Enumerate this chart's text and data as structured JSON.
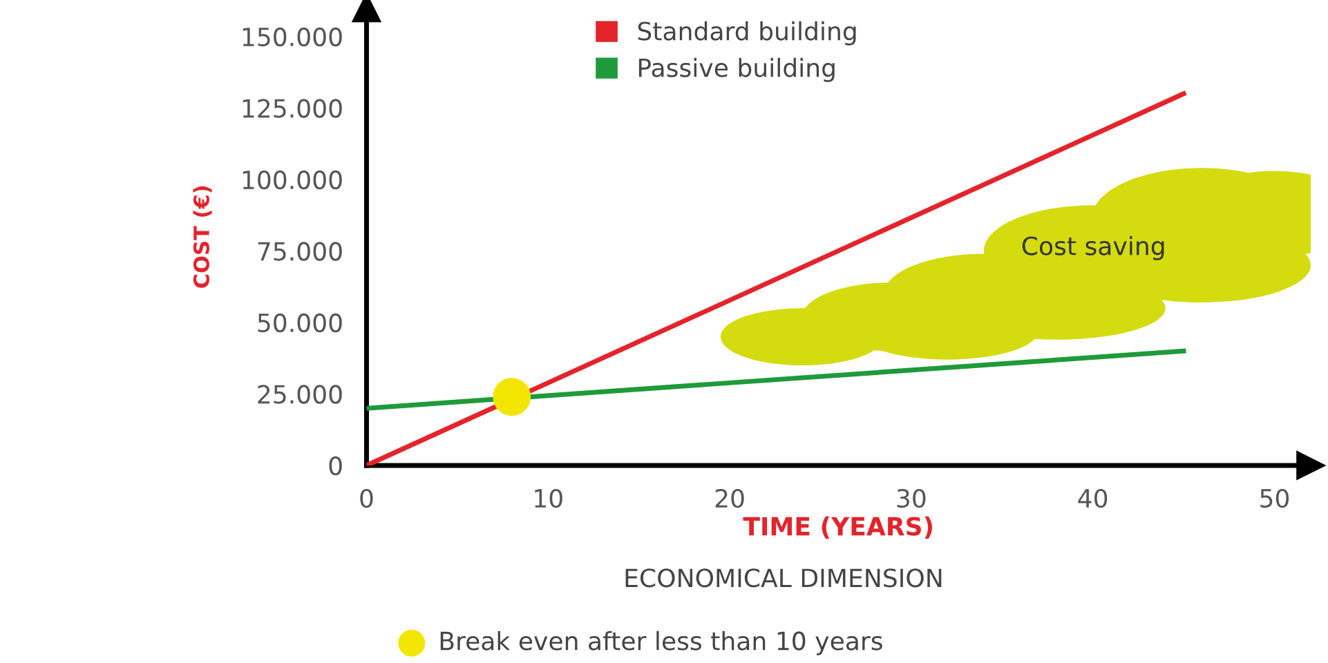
{
  "chart_data": {
    "type": "line",
    "xlabel": "TIME (YEARS)",
    "ylabel": "COST (€)",
    "xlim": [
      0,
      52
    ],
    "ylim": [
      0,
      160000
    ],
    "xticks": [
      0,
      10,
      20,
      30,
      40,
      50
    ],
    "yticks": [
      {
        "value": 0,
        "label": "0"
      },
      {
        "value": 25000,
        "label": "25.000"
      },
      {
        "value": 50000,
        "label": "50.000"
      },
      {
        "value": 75000,
        "label": "75.000"
      },
      {
        "value": 100000,
        "label": "100.000"
      },
      {
        "value": 125000,
        "label": "125.000"
      },
      {
        "value": 150000,
        "label": "150.000"
      }
    ],
    "series": [
      {
        "name": "Standard building",
        "color": "#e3242b",
        "x": [
          0,
          45
        ],
        "values": [
          0,
          130000
        ]
      },
      {
        "name": "Passive building",
        "color": "#1f9a3a",
        "x": [
          0,
          45
        ],
        "values": [
          20000,
          40000
        ]
      },
      {
        "type": "scatter",
        "color": "#f2e600",
        "x": [
          8
        ],
        "values": [
          24000
        ]
      }
    ],
    "annotations": [
      "Cost saving",
      "ECONOMICAL DIMENSION",
      "Break even after less than 10 years"
    ],
    "legend": "top",
    "grid": false
  }
}
